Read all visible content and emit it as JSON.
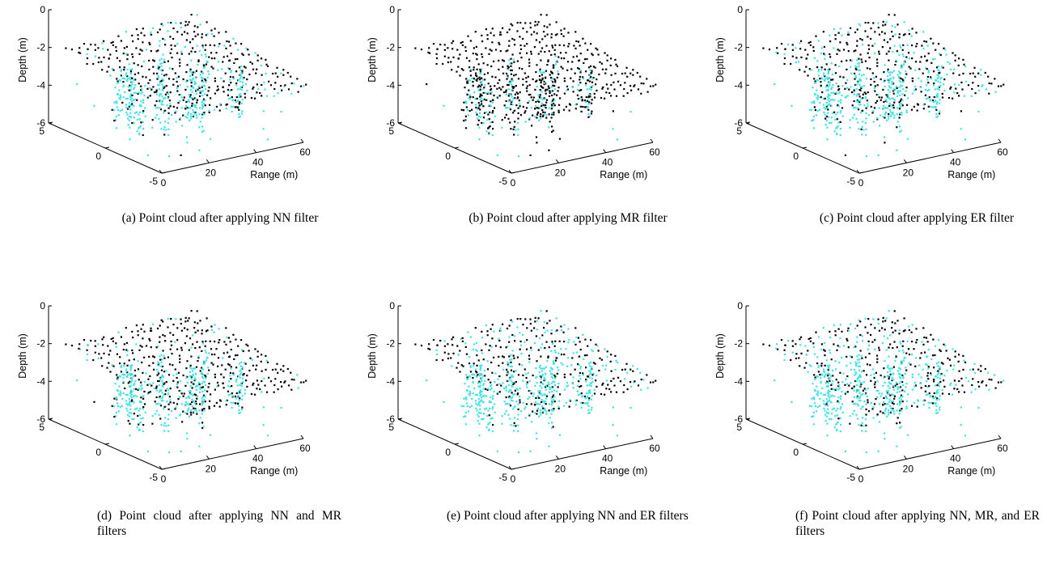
{
  "colors": {
    "kept": "#000000",
    "removed": "#3fe3e3",
    "axis": "#000000"
  },
  "axes": {
    "zlabel": "Depth (m)",
    "xlabel": "Range (m)",
    "z_ticks": [
      "0",
      "-2",
      "-4",
      "-6"
    ],
    "y_ticks": [
      "5",
      "0",
      "-5"
    ],
    "x_ticks": [
      "0",
      "20",
      "40",
      "60"
    ]
  },
  "panels": [
    {
      "caption": "(a) Point cloud after applying NN filter",
      "kept_fraction": 0.45,
      "seed": 11
    },
    {
      "caption": "(b) Point cloud after applying MR filter",
      "kept_fraction": 0.8,
      "seed": 23
    },
    {
      "caption": "(c) Point cloud after applying ER filter",
      "kept_fraction": 0.35,
      "seed": 37
    },
    {
      "caption": "(d) Point cloud after applying NN and MR filters",
      "kept_fraction": 0.5,
      "seed": 41
    },
    {
      "caption": "(e) Point cloud after applying NN and ER filters",
      "kept_fraction": 0.28,
      "seed": 53
    },
    {
      "caption": "(f) Point cloud after applying NN, MR, and ER filters",
      "kept_fraction": 0.25,
      "seed": 67
    }
  ],
  "chart_data": {
    "type": "scatter",
    "dimensions": 3,
    "x_axis": {
      "label": "Range (m)",
      "range": [
        0,
        60
      ]
    },
    "y_axis": {
      "label": "",
      "range": [
        -5,
        5
      ]
    },
    "z_axis": {
      "label": "Depth (m)",
      "range": [
        -6,
        0
      ]
    },
    "point_colors": {
      "kept": "#000000",
      "removed": "#3fe3e3"
    }
  }
}
